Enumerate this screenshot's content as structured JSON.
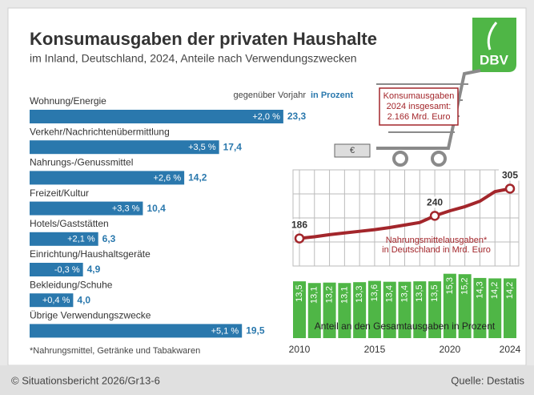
{
  "header": {
    "title": "Konsumausgaben der privaten Haushalte",
    "subtitle": "im Inland, Deutschland, 2024, Anteile nach Verwendungszwecken",
    "logo": "DBV"
  },
  "chart_data": [
    {
      "type": "hbar",
      "legend_change": "gegenüber Vorjahr",
      "legend_value": "in Prozent",
      "color": "#2a78ad",
      "categories": [
        "Wohnung/Energie",
        "Verkehr/Nachrichtenübermittlung",
        "Nahrungs-/Genussmittel",
        "Freizeit/Kultur",
        "Hotels/Gaststätten",
        "Einrichtung/Haushaltsgeräte",
        "Bekleidung/Schuhe",
        "Übrige Verwendungszwecke"
      ],
      "values": [
        23.3,
        17.4,
        14.2,
        10.4,
        6.3,
        4.9,
        4.0,
        19.5
      ],
      "value_labels": [
        "23,3",
        "17,4",
        "14,2",
        "10,4",
        "6,3",
        "4,9",
        "4,0",
        "19,5"
      ],
      "changes": [
        2.0,
        3.5,
        2.6,
        3.3,
        2.1,
        -0.3,
        0.4,
        5.1
      ],
      "change_labels": [
        "+2,0 %",
        "+3,5 %",
        "+2,6 %",
        "+3,3 %",
        "+2,1 %",
        "-0,3 %",
        "+0,4 %",
        "+5,1 %"
      ],
      "xlim": [
        0,
        25
      ]
    },
    {
      "type": "line",
      "title": [
        "Nahrungsmittelausgaben*",
        "in Deutschland in Mrd. Euro"
      ],
      "color": "#a3262b",
      "x": [
        2010,
        2011,
        2012,
        2013,
        2014,
        2015,
        2016,
        2017,
        2018,
        2019,
        2020,
        2021,
        2022,
        2023,
        2024
      ],
      "values": [
        186,
        190,
        195,
        199,
        203,
        207,
        212,
        218,
        224,
        240,
        252,
        262,
        275,
        298,
        305
      ],
      "xlim": [
        2010,
        2024
      ],
      "ylim": [
        120,
        350
      ]
    },
    {
      "type": "bar",
      "title": "Anteil an den Gesamtausgaben in Prozent",
      "color": "#4fb646",
      "x": [
        2010,
        2011,
        2012,
        2013,
        2014,
        2015,
        2016,
        2017,
        2018,
        2019,
        2020,
        2021,
        2022,
        2023,
        2024
      ],
      "values": [
        13.5,
        13.1,
        13.2,
        13.1,
        13.3,
        13.6,
        13.4,
        13.4,
        13.5,
        13.5,
        15.3,
        15.2,
        14.3,
        14.2,
        14.2
      ],
      "value_labels": [
        "13,5",
        "13,1",
        "13,2",
        "13,1",
        "13,3",
        "13,6",
        "13,4",
        "13,4",
        "13,5",
        "13,5",
        "15,3",
        "15,2",
        "14,3",
        "14,2",
        "14,2"
      ],
      "xlim": [
        2010,
        2024
      ],
      "ylim": [
        0,
        16
      ],
      "xticks": [
        2010,
        2015,
        2020,
        2024
      ]
    }
  ],
  "cart": {
    "lines": [
      "Konsumausgaben",
      "2024 insgesamt:",
      "2.166 Mrd. Euro"
    ]
  },
  "footnote": "*Nahrungsmittel, Getränke und Tabakwaren",
  "footer": {
    "credit": "© Situationsbericht 2026/Gr13-6",
    "source": "Quelle: Destatis"
  }
}
